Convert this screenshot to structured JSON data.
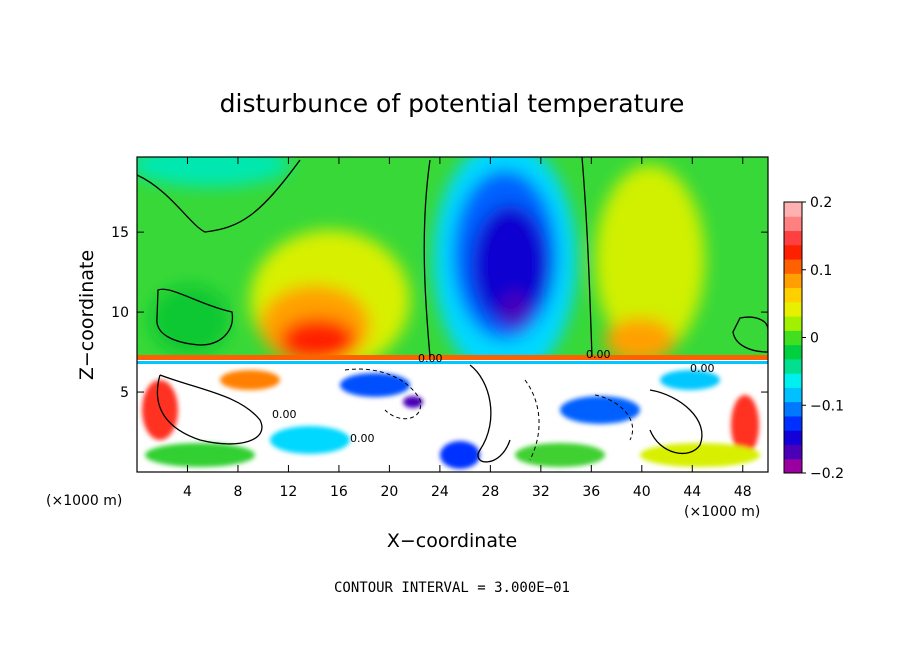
{
  "chart_data": {
    "type": "heatmap",
    "title": "disturbunce of potential temperature",
    "xlabel": "X−coordinate",
    "ylabel": "Z−coordinate",
    "x_unit_left": "(×1000 m)",
    "x_unit_right": "(×1000 m)",
    "x_ticks": [
      4,
      8,
      12,
      16,
      20,
      24,
      28,
      32,
      36,
      40,
      44,
      48
    ],
    "y_ticks": [
      5,
      10,
      15
    ],
    "xlim": [
      0,
      50
    ],
    "ylim": [
      0,
      19.7
    ],
    "colorbar": {
      "ticks": [
        0.2,
        0.1,
        0,
        -0.1,
        -0.2
      ],
      "tick_labels": [
        "0.2",
        "0.1",
        "0",
        "−0.1",
        "−0.2"
      ],
      "range": [
        -0.2,
        0.2
      ],
      "colors": [
        "#9a00a0",
        "#4a00b8",
        "#1400d8",
        "#0030ff",
        "#0078ff",
        "#00c0ff",
        "#00f0f0",
        "#00e090",
        "#00d040",
        "#40e020",
        "#a0f000",
        "#e8f000",
        "#ffd000",
        "#ffa000",
        "#ff6000",
        "#ff2000",
        "#ff4040",
        "#ff8080",
        "#ffb0b0"
      ]
    },
    "contour_labels": [
      "0.00",
      "0.00",
      "0.00",
      "0.00",
      "0.00"
    ],
    "annotation": "CONTOUR INTERVAL = 3.000E−01",
    "features": [
      {
        "name": "negative anomaly (blue)",
        "x_range": [
          22,
          35
        ],
        "z_range": [
          7.5,
          19.7
        ],
        "min_value": -0.2
      },
      {
        "name": "positive anomaly (red)",
        "x_range": [
          11,
          20
        ],
        "z_range": [
          7.5,
          13
        ],
        "max_value": 0.15
      },
      {
        "name": "turbulent boundary layer",
        "x_range": [
          0,
          50
        ],
        "z_range": [
          0,
          7.3
        ]
      }
    ]
  }
}
